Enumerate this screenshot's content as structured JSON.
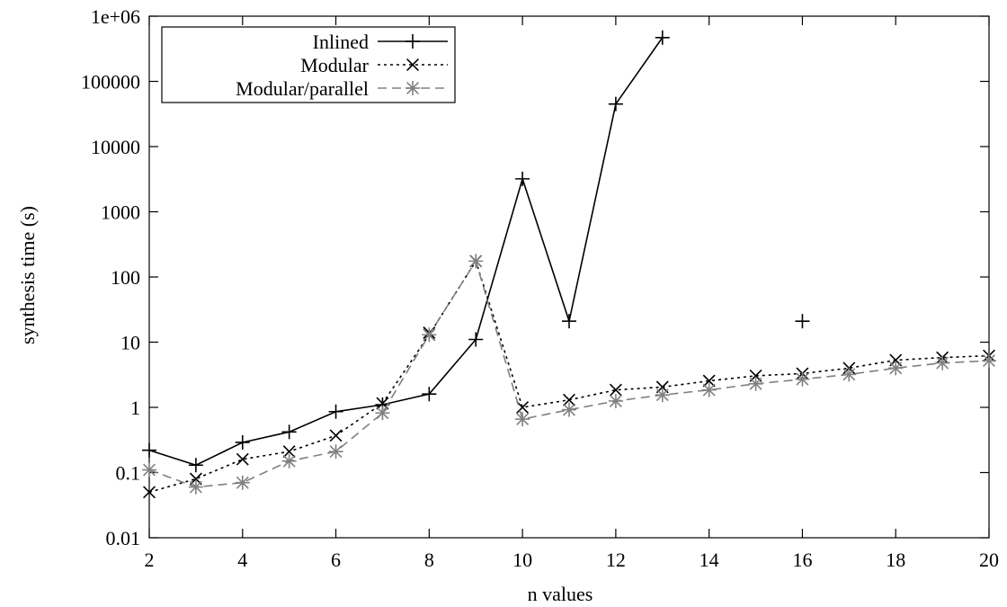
{
  "chart_data": {
    "type": "line",
    "title": "",
    "xlabel": "n values",
    "ylabel": "synthesis time (s)",
    "xlim": [
      2,
      20
    ],
    "ylim": [
      0.01,
      1000000
    ],
    "yscale": "log",
    "grid": false,
    "legend_position": "top-left",
    "x_ticks": [
      "2",
      "4",
      "6",
      "8",
      "10",
      "12",
      "14",
      "16",
      "18",
      "20"
    ],
    "y_ticks": [
      "0.01",
      "0.1",
      "1",
      "10",
      "100",
      "1000",
      "10000",
      "100000",
      "1e+06"
    ],
    "series": [
      {
        "name": "Inlined",
        "color": "#000000",
        "line": "solid",
        "marker": "plus",
        "points": [
          [
            2,
            0.22
          ],
          [
            3,
            0.13
          ],
          [
            4,
            0.29
          ],
          [
            5,
            0.42
          ],
          [
            6,
            0.86
          ],
          [
            7,
            1.1
          ],
          [
            8,
            1.6
          ],
          [
            9,
            11
          ],
          [
            10,
            3200
          ],
          [
            11,
            21
          ],
          [
            12,
            45000
          ],
          [
            13,
            470000
          ]
        ],
        "extra_points": [
          [
            16,
            21
          ]
        ]
      },
      {
        "name": "Modular",
        "color": "#000000",
        "line": "dotted",
        "marker": "cross",
        "points": [
          [
            2,
            0.05
          ],
          [
            3,
            0.08
          ],
          [
            4,
            0.16
          ],
          [
            5,
            0.21
          ],
          [
            6,
            0.37
          ],
          [
            7,
            1.15
          ],
          [
            8,
            13
          ],
          [
            9,
            175
          ],
          [
            10,
            1.0
          ],
          [
            11,
            1.3
          ],
          [
            12,
            1.85
          ],
          [
            13,
            2.05
          ],
          [
            14,
            2.55
          ],
          [
            15,
            3.05
          ],
          [
            16,
            3.3
          ],
          [
            17,
            4.0
          ],
          [
            18,
            5.3
          ],
          [
            19,
            5.8
          ],
          [
            20,
            6.2
          ]
        ],
        "extra_points": [
          [
            8,
            14
          ]
        ]
      },
      {
        "name": "Modular/parallel",
        "color": "#808080",
        "line": "dashed",
        "marker": "star",
        "points": [
          [
            2,
            0.11
          ],
          [
            3,
            0.06
          ],
          [
            4,
            0.07
          ],
          [
            5,
            0.15
          ],
          [
            6,
            0.21
          ],
          [
            7,
            0.82
          ],
          [
            8,
            13
          ],
          [
            9,
            175
          ],
          [
            10,
            0.66
          ],
          [
            11,
            0.92
          ],
          [
            12,
            1.25
          ],
          [
            13,
            1.55
          ],
          [
            14,
            1.85
          ],
          [
            15,
            2.3
          ],
          [
            16,
            2.7
          ],
          [
            17,
            3.2
          ],
          [
            18,
            4.0
          ],
          [
            19,
            4.8
          ],
          [
            20,
            5.2
          ]
        ],
        "extra_points": []
      }
    ]
  }
}
